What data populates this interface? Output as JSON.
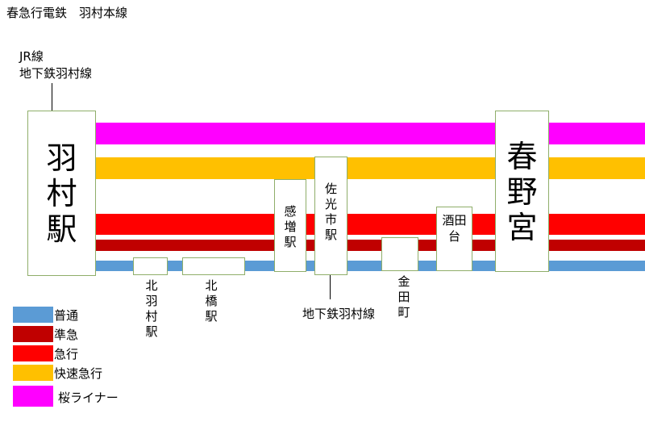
{
  "title": "春急行電鉄　羽村本線",
  "connections": {
    "hamura": [
      "JR線",
      "地下鉄羽村線"
    ],
    "sako": "地下鉄羽村線"
  },
  "colors": {
    "local": "#5b9bd5",
    "semi_express": "#c00000",
    "express": "#ff0000",
    "rapid_express": "#ffc000",
    "sakura_liner": "#ff00ff",
    "station_border": "#8fae6a"
  },
  "stations": {
    "hamura": "羽村駅",
    "kitahamura": "北羽村駅",
    "kitahashi": "北橋駅",
    "kanzo": "感増駅",
    "sako": "佐光市駅",
    "kaneda": "金田町",
    "sakata": "酒田台",
    "harunomiya": "春野宮"
  },
  "legend": [
    {
      "label": "普通",
      "color": "#5b9bd5"
    },
    {
      "label": "準急",
      "color": "#c00000"
    },
    {
      "label": "急行",
      "color": "#ff0000"
    },
    {
      "label": "快速急行",
      "color": "#ffc000"
    },
    {
      "label": "桜ライナー",
      "color": "#ff00ff"
    }
  ]
}
